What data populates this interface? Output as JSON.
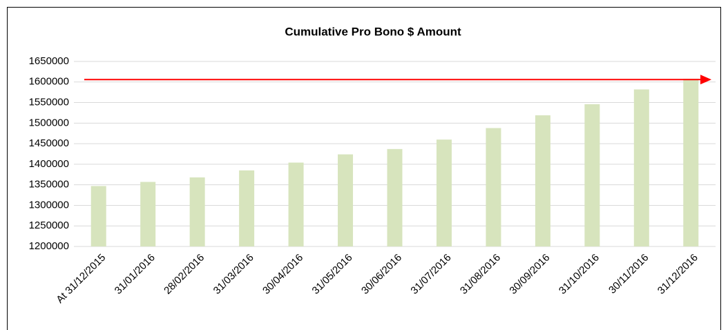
{
  "chart_data": {
    "type": "bar",
    "title": "Cumulative Pro Bono $ Amount",
    "categories": [
      "At 31/12/2015",
      "31/01/2016",
      "28/02/2016",
      "31/03/2016",
      "30/04/2016",
      "31/05/2016",
      "30/06/2016",
      "31/07/2016",
      "31/08/2016",
      "30/09/2016",
      "31/10/2016",
      "30/11/2016",
      "31/12/2016"
    ],
    "values": [
      1347000,
      1357000,
      1368000,
      1385000,
      1404000,
      1424000,
      1437000,
      1460000,
      1488000,
      1519000,
      1546000,
      1582000,
      1608000
    ],
    "color": "#d7e4bd",
    "ylim": [
      1200000,
      1650000
    ],
    "yticks": [
      1200000,
      1250000,
      1300000,
      1350000,
      1400000,
      1450000,
      1500000,
      1550000,
      1600000,
      1650000
    ],
    "grid": true,
    "reference_arrow": {
      "value": 1606000,
      "color": "#ff0000"
    }
  }
}
